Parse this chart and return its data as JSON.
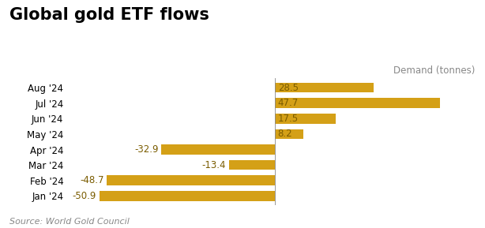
{
  "title": "Global gold ETF flows",
  "subtitle": "Demand (tonnes)",
  "source": "Source: World Gold Council",
  "categories": [
    "Jan '24",
    "Feb '24",
    "Mar '24",
    "Apr '24",
    "May '24",
    "Jun '24",
    "Jul '24",
    "Aug '24"
  ],
  "values": [
    -50.9,
    -48.7,
    -13.4,
    -32.9,
    8.2,
    17.5,
    47.7,
    28.5
  ],
  "bar_color": "#D4A017",
  "label_color": "#7a5c00",
  "title_fontsize": 15,
  "label_fontsize": 8.5,
  "source_fontsize": 8,
  "subtitle_fontsize": 8.5,
  "tick_fontsize": 8.5,
  "xlim": [
    -60,
    58
  ],
  "background_color": "#ffffff"
}
